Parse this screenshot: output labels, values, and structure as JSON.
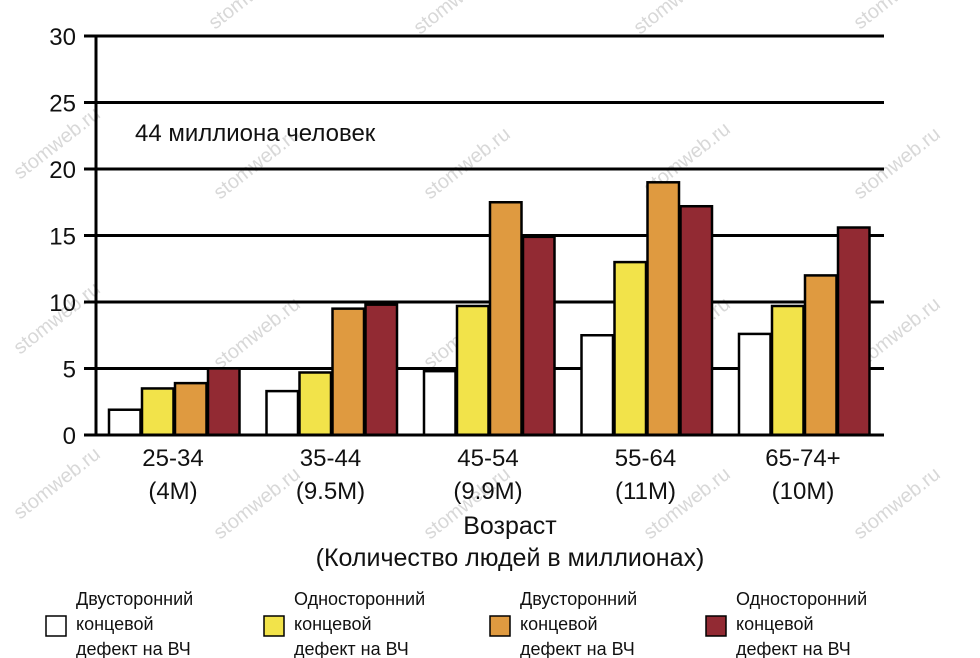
{
  "watermark": "stomweb.ru",
  "chart_data": {
    "type": "bar",
    "title": "",
    "annotation": "44 миллиона человек",
    "xlabel": [
      "Возраст",
      "(Количество людей в миллионах)"
    ],
    "ylabel": "",
    "ylim": [
      0,
      30
    ],
    "yticks": [
      0,
      5,
      10,
      15,
      20,
      25,
      30
    ],
    "grid": "horizontal",
    "categories": [
      [
        "25-34",
        "(4M)"
      ],
      [
        "35-44",
        "(9.5M)"
      ],
      [
        "45-54",
        "(9.9M)"
      ],
      [
        "55-64",
        "(11M)"
      ],
      [
        "65-74+",
        "(10M)"
      ]
    ],
    "legend_position": "bottom",
    "series": [
      {
        "name": "Двусторонний концевой дефект на ВЧ",
        "legend_lines": [
          "Двусторонний",
          "концевой",
          "дефект на ВЧ"
        ],
        "color": "#ffffff",
        "values": [
          1.9,
          3.3,
          4.8,
          7.5,
          7.6
        ]
      },
      {
        "name": "Односторонний концевой дефект на ВЧ",
        "legend_lines": [
          "Односторонний",
          "концевой",
          "дефект на ВЧ"
        ],
        "color": "#f2e34a",
        "values": [
          3.5,
          4.7,
          9.7,
          13.0,
          9.7
        ]
      },
      {
        "name": "Двусторонний концевой дефект на ВЧ",
        "legend_lines": [
          "Двусторонний",
          "концевой",
          "дефект на ВЧ"
        ],
        "color": "#df9a40",
        "values": [
          3.9,
          9.5,
          17.5,
          19.0,
          12.0
        ]
      },
      {
        "name": "Односторонний концевой дефект на ВЧ",
        "legend_lines": [
          "Односторонний",
          "концевой",
          "дефект на ВЧ"
        ],
        "color": "#922a33",
        "values": [
          5.0,
          9.8,
          14.9,
          17.2,
          15.6
        ]
      }
    ]
  }
}
